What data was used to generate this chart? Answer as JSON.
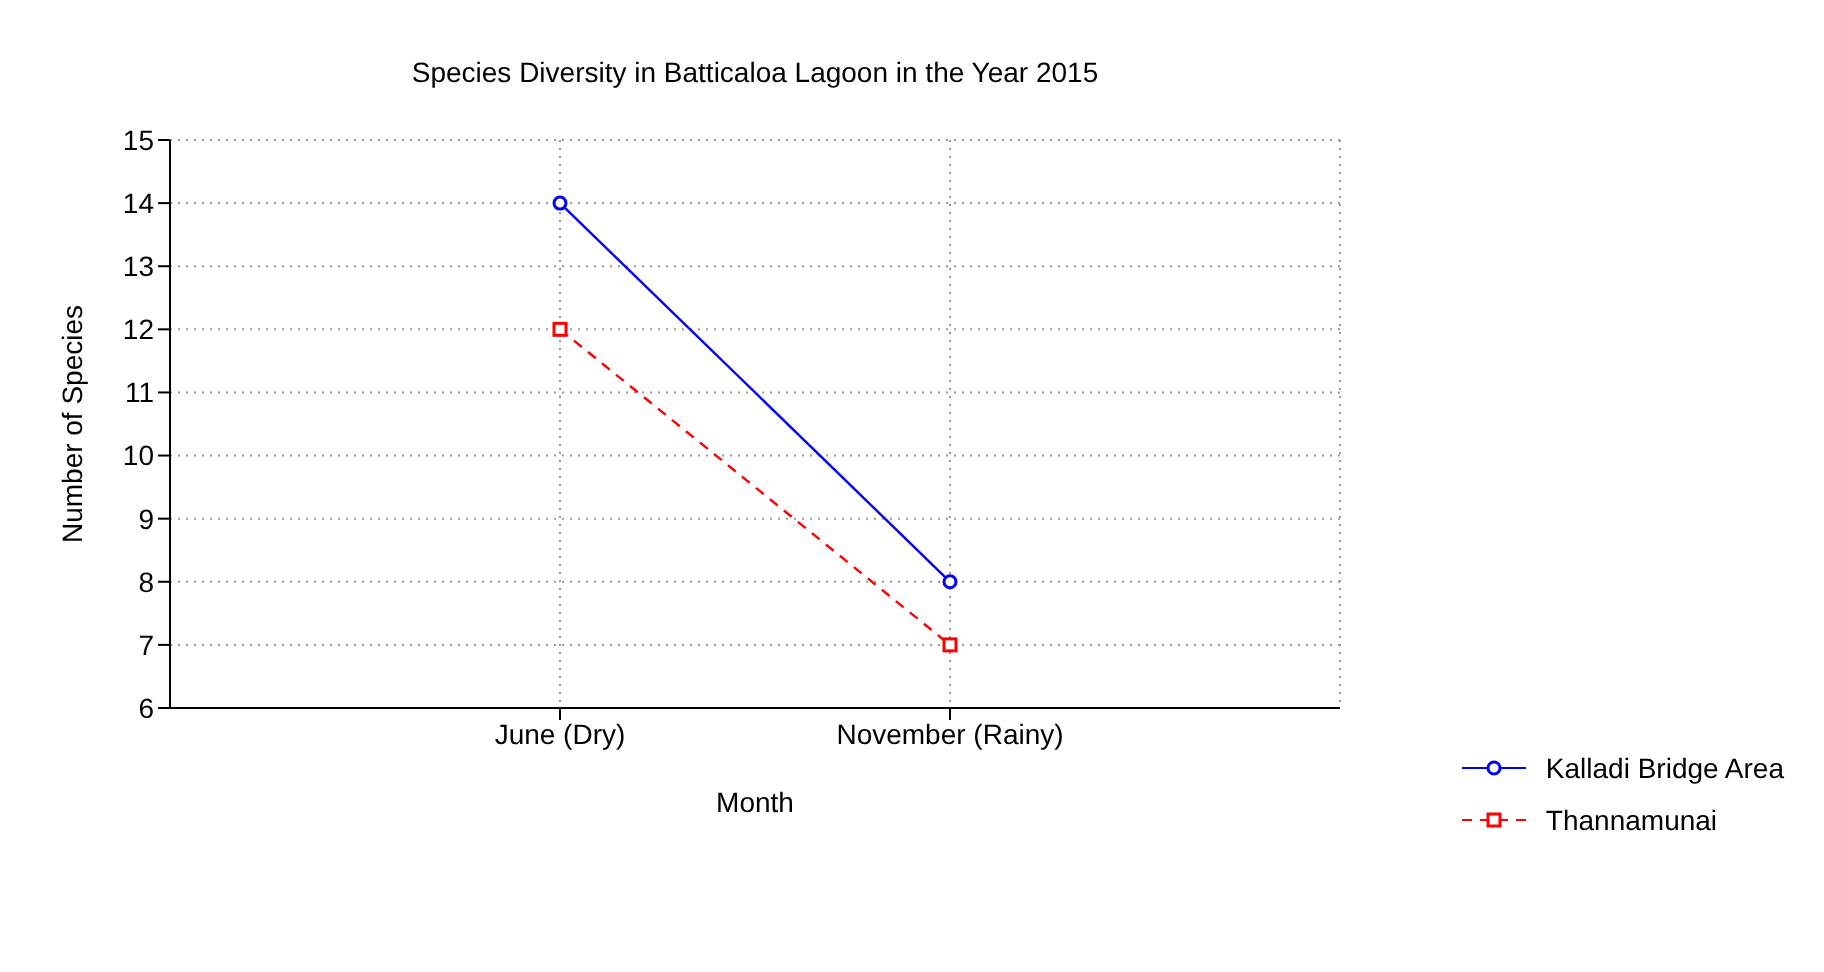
{
  "chart_data": {
    "type": "line",
    "title": "Species Diversity in Batticaloa Lagoon in the Year 2015",
    "xlabel": "Month",
    "ylabel": "Number of Species",
    "categories": [
      "June (Dry)",
      "November (Rainy)"
    ],
    "series": [
      {
        "name": "Kalladi Bridge Area",
        "color": "#0000ff",
        "values": [
          14,
          8
        ],
        "marker": "circle",
        "line_style": "solid"
      },
      {
        "name": "Thannamunai",
        "color": "#ff0000",
        "values": [
          12,
          7
        ],
        "marker": "square",
        "line_style": "dashed"
      }
    ],
    "ylim": [
      6,
      15
    ],
    "yticks": [
      6,
      7,
      8,
      9,
      10,
      11,
      12,
      13,
      14,
      15
    ],
    "grid": true,
    "legend": "right"
  }
}
